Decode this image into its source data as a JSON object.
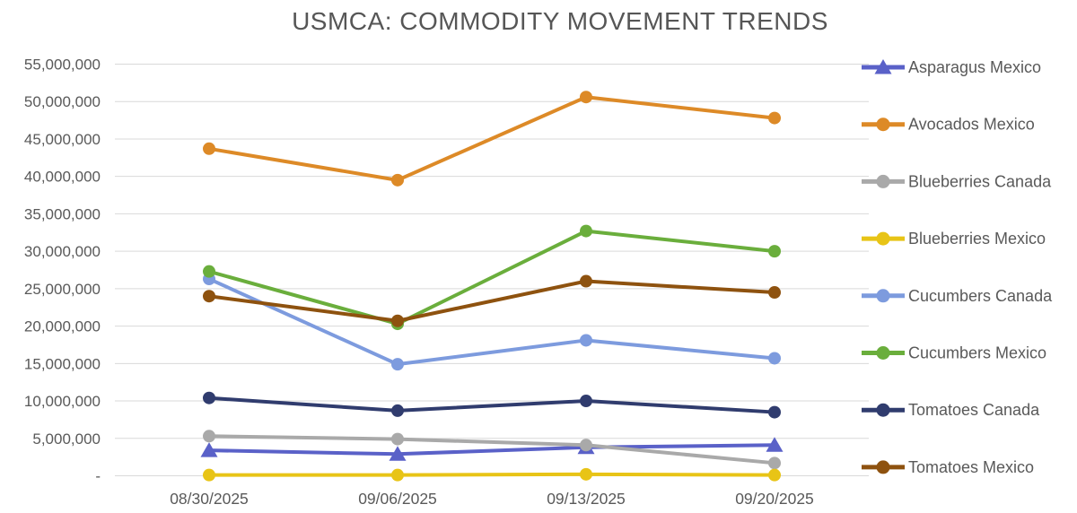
{
  "chart_data": {
    "type": "line",
    "title": "USMCA: COMMODITY MOVEMENT TRENDS",
    "categories": [
      "08/30/2025",
      "09/06/2025",
      "09/13/2025",
      "09/20/2025"
    ],
    "series": [
      {
        "name": "Asparagus Mexico",
        "color": "#5A61C8",
        "marker": "triangle",
        "values": [
          3400000,
          2900000,
          3800000,
          4100000
        ]
      },
      {
        "name": "Avocados Mexico",
        "color": "#DD8A27",
        "marker": "circle",
        "values": [
          43700000,
          39500000,
          50600000,
          47800000
        ]
      },
      {
        "name": "Blueberries Canada",
        "color": "#A9A9A9",
        "marker": "circle",
        "values": [
          5300000,
          4900000,
          4100000,
          1700000
        ]
      },
      {
        "name": "Blueberries Mexico",
        "color": "#E8C416",
        "marker": "circle",
        "values": [
          100000,
          100000,
          200000,
          100000
        ]
      },
      {
        "name": "Cucumbers Canada",
        "color": "#7D9BDE",
        "marker": "circle",
        "values": [
          26300000,
          14900000,
          18100000,
          15700000
        ]
      },
      {
        "name": "Cucumbers Mexico",
        "color": "#6AAE3C",
        "marker": "circle",
        "values": [
          27300000,
          20300000,
          32700000,
          30000000
        ]
      },
      {
        "name": "Tomatoes Canada",
        "color": "#303C6E",
        "marker": "circle",
        "values": [
          10400000,
          8700000,
          10000000,
          8500000
        ]
      },
      {
        "name": "Tomatoes Mexico",
        "color": "#8E520F",
        "marker": "circle",
        "values": [
          24000000,
          20700000,
          26000000,
          24500000
        ]
      }
    ],
    "y_axis": {
      "min": 0,
      "max": 55000000,
      "step": 5000000,
      "zero_label": "-",
      "number_format": "#,##0"
    },
    "legend_position": "right",
    "grid": true
  },
  "colors": {
    "title_text": "#565656",
    "axis_text": "#595959",
    "gridline": "#D9D9D9",
    "background": "#FFFFFF"
  }
}
